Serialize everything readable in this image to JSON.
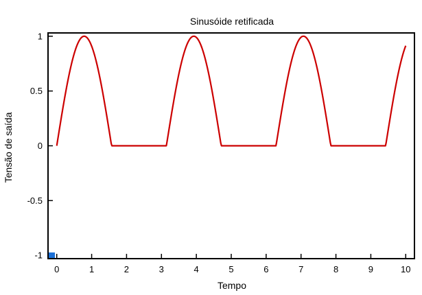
{
  "chart_data": {
    "type": "line",
    "title": "Sinusóide retificada",
    "xlabel": "Tempo",
    "ylabel": "Tensão de saída",
    "xlim": [
      -0.25,
      10.25
    ],
    "ylim": [
      -1.03,
      1.03
    ],
    "xticks": [
      0,
      1,
      2,
      3,
      4,
      5,
      6,
      7,
      8,
      9,
      10
    ],
    "xtick_labels": [
      "0",
      "1",
      "2",
      "3",
      "4",
      "5",
      "6",
      "7",
      "8",
      "9",
      "10"
    ],
    "yticks": [
      -1,
      -0.5,
      0,
      0.5,
      1
    ],
    "ytick_labels": [
      "-1",
      "-0.5",
      "0",
      "0.5",
      "1"
    ],
    "grid": false,
    "series": [
      {
        "function": "max(sin(2*t), 0)",
        "x_range": [
          0,
          10
        ],
        "color": "#cc0000",
        "x": [
          0,
          0.2,
          0.4,
          0.6,
          0.785,
          1.0,
          1.2,
          1.4,
          1.571,
          3.142,
          3.4,
          3.6,
          3.927,
          4.2,
          4.5,
          4.712,
          6.283,
          6.5,
          6.8,
          7.069,
          7.3,
          7.6,
          7.854,
          9.425,
          9.6,
          9.8,
          10.0
        ],
        "y": [
          0,
          0.39,
          0.72,
          0.93,
          1.0,
          0.91,
          0.68,
          0.33,
          0,
          0,
          0.49,
          0.79,
          1.0,
          0.85,
          0.41,
          0,
          0,
          0.42,
          0.8,
          1.0,
          0.91,
          0.47,
          0,
          0,
          0.34,
          0.67,
          0.91
        ]
      }
    ],
    "marker_color": "#1a6fd6"
  }
}
